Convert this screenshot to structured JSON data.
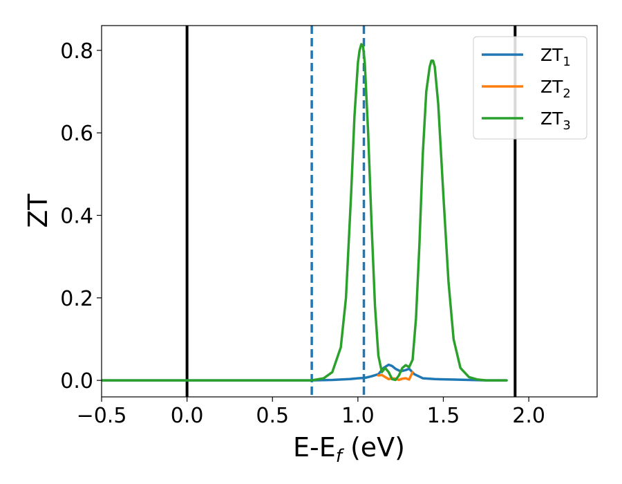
{
  "chart_data": {
    "type": "line",
    "xlabel": "E-E",
    "xlabel_sub": "f",
    "xlabel_unit": " (eV)",
    "ylabel": "ZT",
    "xlim": [
      -0.5,
      2.4
    ],
    "ylim": [
      -0.04,
      0.86
    ],
    "xticks": [
      -0.5,
      0.0,
      0.5,
      1.0,
      1.5,
      2.0
    ],
    "xtick_labels": [
      "−0.5",
      "0.0",
      "0.5",
      "1.0",
      "1.5",
      "2.0"
    ],
    "yticks": [
      0.0,
      0.2,
      0.4,
      0.6,
      0.8
    ],
    "ytick_labels": [
      "0.0",
      "0.2",
      "0.4",
      "0.6",
      "0.8"
    ],
    "legend_position": "top-right",
    "vlines": [
      {
        "x": 0.0,
        "style": "solid",
        "color": "#000000"
      },
      {
        "x": 1.92,
        "style": "solid",
        "color": "#000000"
      },
      {
        "x": 0.73,
        "style": "dashed",
        "color": "#1f77b4"
      },
      {
        "x": 1.035,
        "style": "dashed",
        "color": "#1f77b4"
      }
    ],
    "series": [
      {
        "name": "ZT",
        "name_sub": "1",
        "color": "#1f77b4",
        "x": [
          -0.5,
          0.0,
          0.5,
          0.73,
          0.85,
          0.95,
          1.0,
          1.03,
          1.05,
          1.08,
          1.12,
          1.15,
          1.18,
          1.2,
          1.22,
          1.25,
          1.28,
          1.3,
          1.33,
          1.38,
          1.45,
          1.55,
          1.65,
          1.75,
          1.87
        ],
        "y": [
          0.0,
          0.0,
          0.0,
          0.0,
          0.001,
          0.003,
          0.005,
          0.006,
          0.007,
          0.01,
          0.015,
          0.03,
          0.038,
          0.035,
          0.028,
          0.022,
          0.025,
          0.028,
          0.015,
          0.005,
          0.003,
          0.002,
          0.001,
          0.0,
          0.0
        ]
      },
      {
        "name": "ZT",
        "name_sub": "2",
        "color": "#ff7f0e",
        "x": [
          1.12,
          1.14,
          1.16,
          1.18,
          1.2,
          1.22,
          1.24,
          1.26,
          1.28,
          1.3,
          1.32
        ],
        "y": [
          0.012,
          0.013,
          0.008,
          0.003,
          0.005,
          0.004,
          0.001,
          0.004,
          0.005,
          0.002,
          0.02
        ]
      },
      {
        "name": "ZT",
        "name_sub": "3",
        "color": "#2ca02c",
        "x": [
          -0.5,
          0.0,
          0.5,
          0.73,
          0.8,
          0.85,
          0.9,
          0.93,
          0.96,
          0.98,
          1.0,
          1.01,
          1.02,
          1.03,
          1.04,
          1.06,
          1.08,
          1.1,
          1.12,
          1.14,
          1.16,
          1.18,
          1.2,
          1.22,
          1.24,
          1.26,
          1.28,
          1.3,
          1.32,
          1.34,
          1.36,
          1.38,
          1.4,
          1.42,
          1.43,
          1.44,
          1.45,
          1.47,
          1.5,
          1.53,
          1.56,
          1.6,
          1.65,
          1.7,
          1.75,
          1.87
        ],
        "y": [
          0.0,
          0.0,
          0.0,
          0.0,
          0.005,
          0.02,
          0.08,
          0.2,
          0.45,
          0.64,
          0.77,
          0.8,
          0.815,
          0.81,
          0.77,
          0.6,
          0.38,
          0.18,
          0.06,
          0.02,
          0.03,
          0.02,
          0.003,
          0.001,
          0.012,
          0.03,
          0.037,
          0.032,
          0.05,
          0.15,
          0.33,
          0.55,
          0.7,
          0.76,
          0.775,
          0.775,
          0.76,
          0.67,
          0.45,
          0.24,
          0.1,
          0.03,
          0.008,
          0.002,
          0.0,
          0.0
        ]
      }
    ]
  }
}
